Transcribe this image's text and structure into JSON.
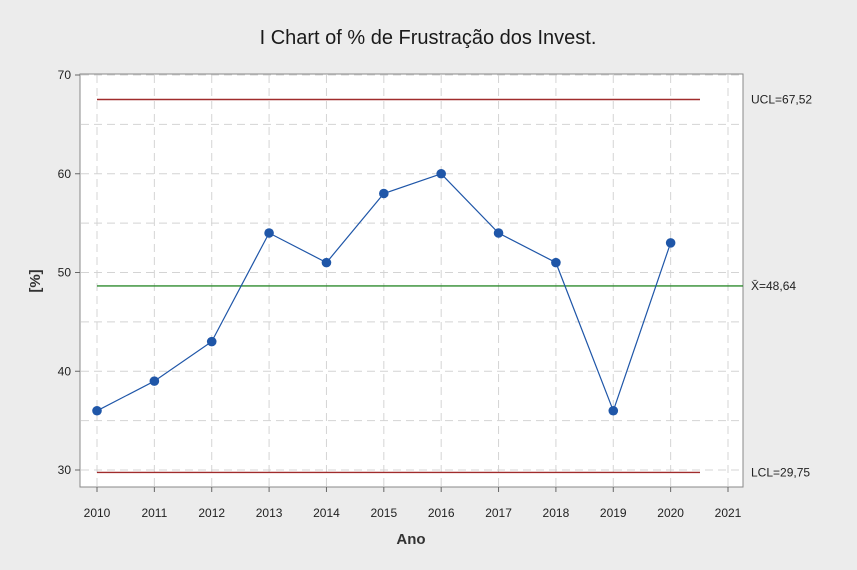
{
  "chart_data": {
    "type": "line",
    "title": "I Chart of % de Frustração dos Invest.",
    "xlabel": "Ano",
    "ylabel": "[%]",
    "x": [
      2010,
      2011,
      2012,
      2013,
      2014,
      2015,
      2016,
      2017,
      2018,
      2019,
      2020
    ],
    "x_ticks": [
      2010,
      2011,
      2012,
      2013,
      2014,
      2015,
      2016,
      2017,
      2018,
      2019,
      2020,
      2021
    ],
    "xlim": [
      2010,
      2021
    ],
    "ylim": [
      30,
      70
    ],
    "y_ticks": [
      30,
      40,
      50,
      60,
      70
    ],
    "grid": true,
    "series": [
      {
        "values": [
          36,
          39,
          43,
          54,
          51,
          58,
          60,
          54,
          51,
          36,
          53
        ],
        "color": "#1f56a8"
      }
    ],
    "control_limits": {
      "ucl": {
        "value": 67.52,
        "label": "UCL=67,52",
        "color": "#a02c2c"
      },
      "center": {
        "value": 48.64,
        "label": "X̄=48,64",
        "color": "#2e8b2e"
      },
      "lcl": {
        "value": 29.75,
        "label": "LCL=29,75",
        "color": "#a02c2c"
      }
    }
  }
}
